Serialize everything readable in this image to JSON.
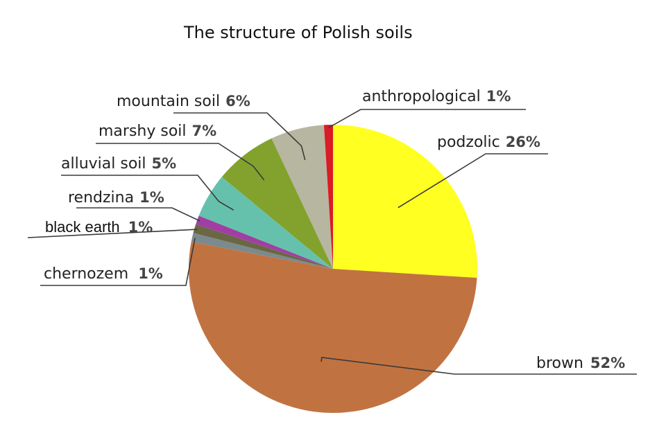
{
  "chart_data": {
    "type": "pie",
    "title": "The structure of Polish soils",
    "slices": [
      {
        "name": "podzolic",
        "value": 26,
        "pct_label": "26%",
        "color": "#ffff22"
      },
      {
        "name": "brown",
        "value": 52,
        "pct_label": "52%",
        "color": "#c07341"
      },
      {
        "name": "chernozem",
        "value": 1,
        "pct_label": "1%",
        "color": "#7c8a8d"
      },
      {
        "name": "black earth",
        "value": 1,
        "pct_label": "1%",
        "color": "#6a6744"
      },
      {
        "name": "rendzina",
        "value": 1,
        "pct_label": "1%",
        "color": "#a03fa3"
      },
      {
        "name": "alluvial soil",
        "value": 5,
        "pct_label": "5%",
        "color": "#66c1ac"
      },
      {
        "name": "marshy soil",
        "value": 7,
        "pct_label": "7%",
        "color": "#82a22d"
      },
      {
        "name": "mountain soil",
        "value": 6,
        "pct_label": "6%",
        "color": "#b7b6a0"
      },
      {
        "name": "anthropological",
        "value": 1,
        "pct_label": "1%",
        "color": "#d91c25"
      }
    ]
  }
}
